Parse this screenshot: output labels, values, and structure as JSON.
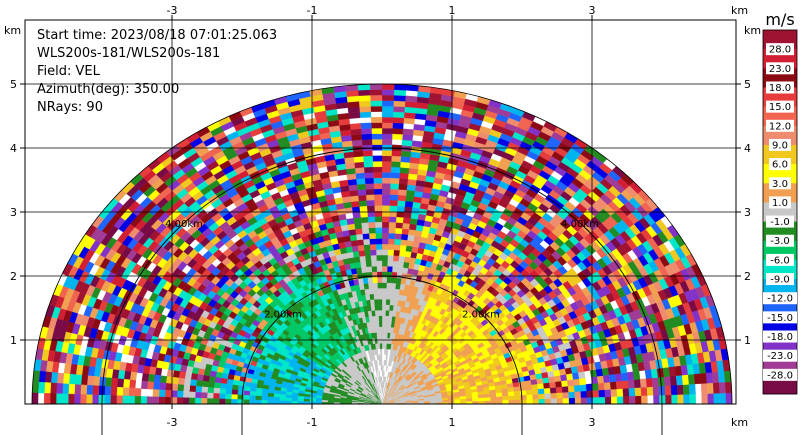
{
  "chart_data": {
    "type": "heatmap",
    "info": {
      "start_time": "Start time: 2023/08/18 07:01:25.063",
      "radar": "WLS200s-181/WLS200s-181",
      "field": "Field: VEL",
      "azimuth": "Azimuth(deg): 350.00",
      "nrays": "NRays: 90"
    },
    "x_axis": {
      "unit": "km",
      "ticks": [
        -3,
        -1,
        1,
        3
      ],
      "tick_labels": [
        "-3",
        "-1",
        "1",
        "3"
      ],
      "range": [
        -5.1,
        5.1
      ]
    },
    "y_axis": {
      "unit": "km",
      "ticks": [
        1,
        2,
        3,
        4,
        5
      ],
      "tick_labels": [
        "1",
        "2",
        "3",
        "4",
        "5"
      ],
      "range": [
        0,
        5.9
      ]
    },
    "range_rings": [
      {
        "range_km": 2.0,
        "label": "2.00km"
      },
      {
        "range_km": 4.0,
        "label": "4.00km"
      }
    ],
    "max_range_km": 5.0,
    "grid": true,
    "colorbar": {
      "unit": "m/s",
      "labels": [
        "28.0",
        "23.0",
        "18.0",
        "15.0",
        "12.0",
        "9.0",
        "6.0",
        "3.0",
        "1.0",
        "-1.0",
        "-3.0",
        "-6.0",
        "-9.0",
        "-12.0",
        "-15.0",
        "-18.0",
        "-23.0",
        "-28.0"
      ],
      "colors": [
        "#a01232",
        "#d21e32",
        "#8c0a14",
        "#e63c3c",
        "#f06450",
        "#f08c6e",
        "#f0c81e",
        "#ffff00",
        "#f0a050",
        "#c8c8c8",
        "#228b22",
        "#00c864",
        "#00e6c8",
        "#00b4f0",
        "#1e64ff",
        "#0000e6",
        "#8232c8",
        "#a03c96",
        "#780a46"
      ]
    }
  }
}
